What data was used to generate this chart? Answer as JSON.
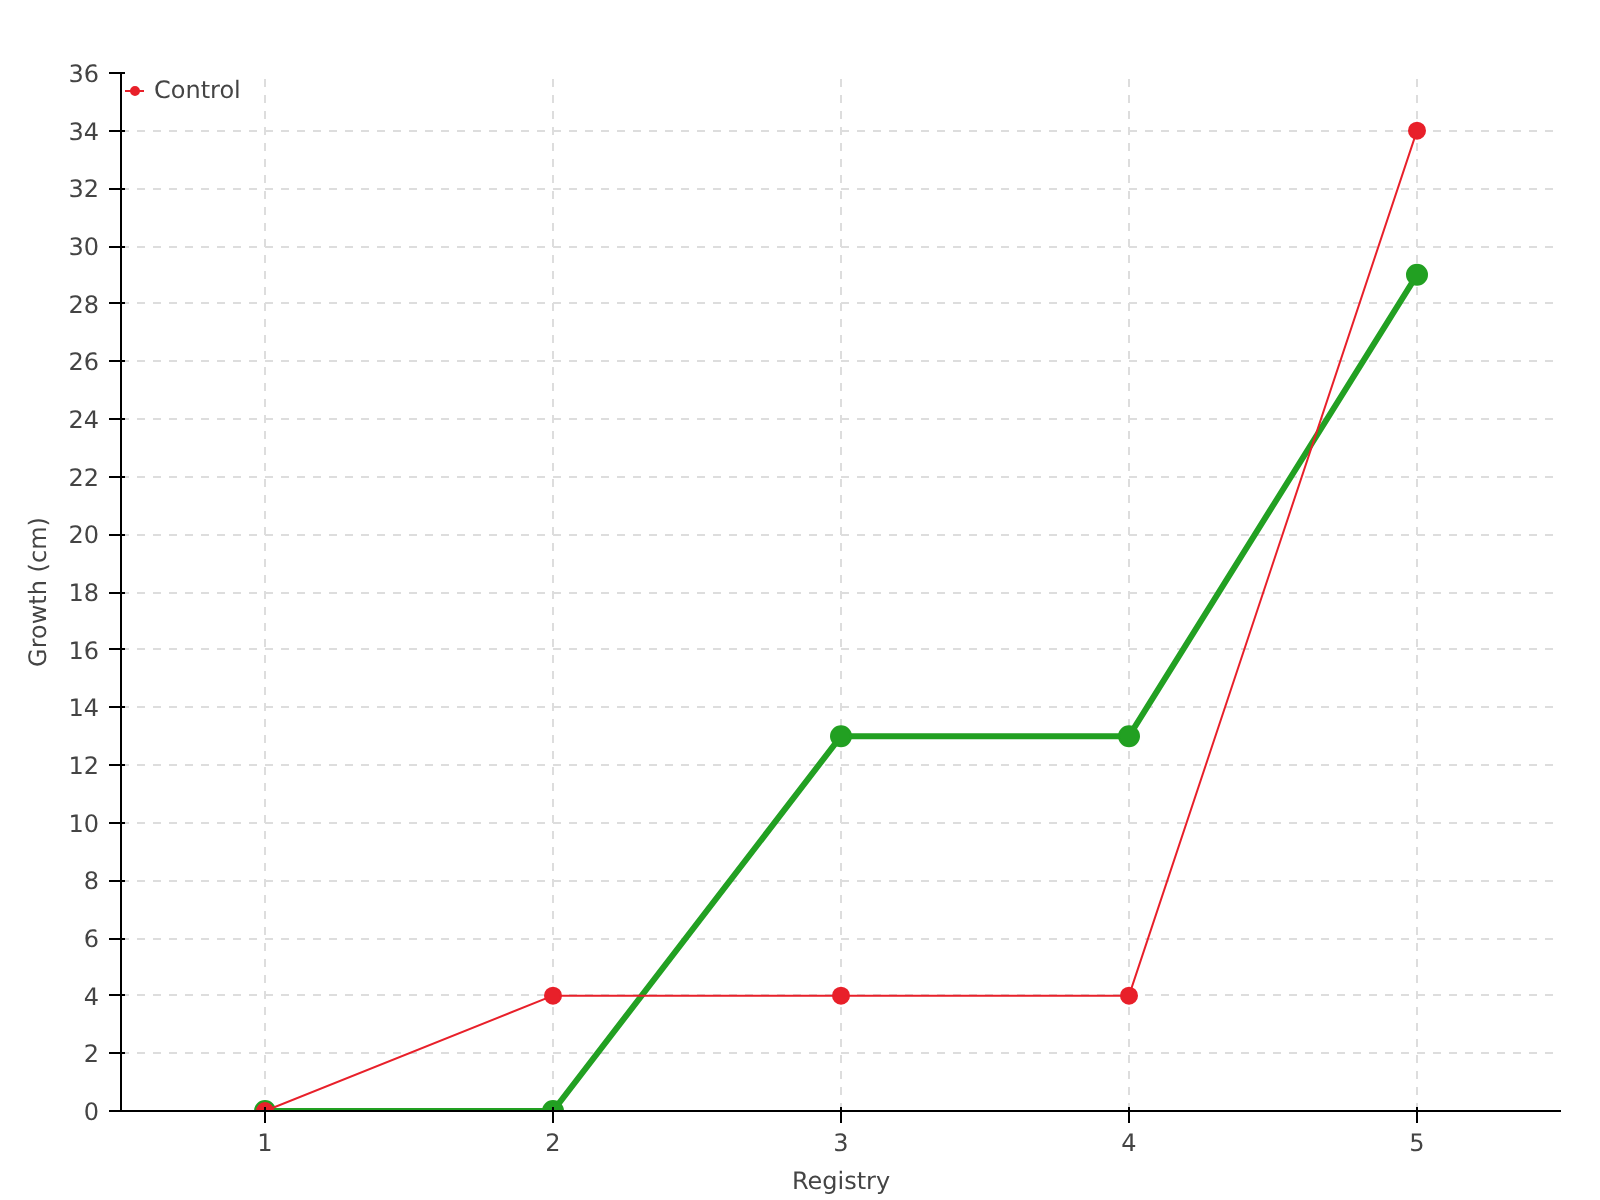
{
  "chart_data": {
    "type": "line",
    "xlabel": "Registry",
    "ylabel": "Growth (cm)",
    "x": [
      1,
      2,
      3,
      4,
      5
    ],
    "xlim": [
      0.5,
      5.5
    ],
    "xticks": [
      1,
      2,
      3,
      4,
      5
    ],
    "ylim": [
      0,
      36
    ],
    "yticks": [
      0,
      2,
      4,
      6,
      8,
      10,
      12,
      14,
      16,
      18,
      20,
      22,
      24,
      26,
      28,
      30,
      32,
      34,
      36
    ],
    "series": [
      {
        "color": "#22a022",
        "values": [
          0,
          0,
          13,
          13,
          29
        ]
      },
      {
        "name": "Control",
        "color": "#e8202a",
        "values": [
          0,
          4,
          4,
          4,
          34
        ]
      }
    ],
    "grid": true,
    "legend": "top left",
    "marker": "circle"
  }
}
